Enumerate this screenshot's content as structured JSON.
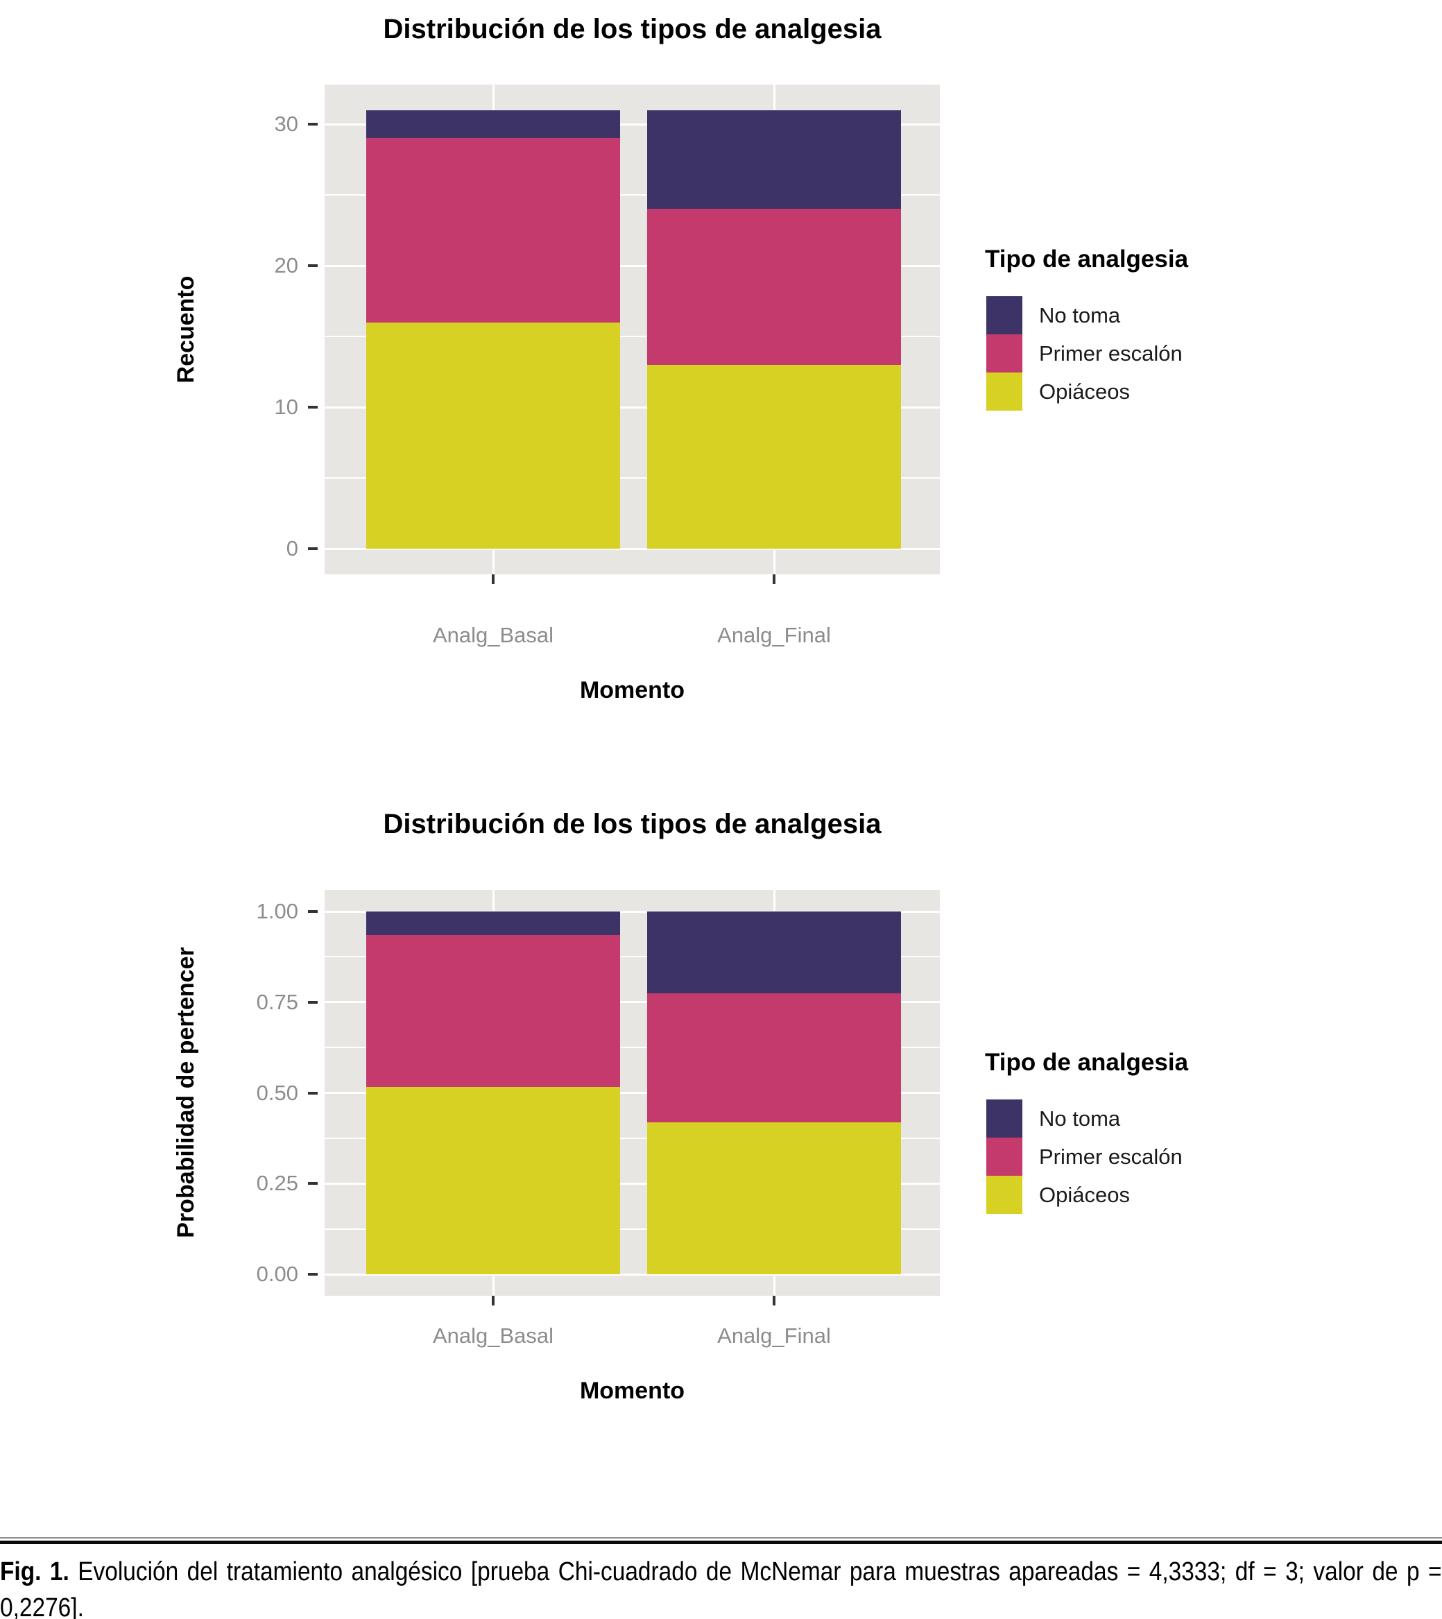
{
  "page": {
    "background": "#FFFFFF"
  },
  "figure": {
    "caption_label": "Fig. 1.",
    "caption_text": " Evolución del tratamiento analgésico [prueba Chi-cuadrado de McNemar para muestras apareadas = 4,3333; df = 3; valor de p = 0,2276]."
  },
  "legend": {
    "title": "Tipo de analgesia",
    "items": [
      {
        "label": "No toma",
        "color": "#3E3367"
      },
      {
        "label": "Primer escalón",
        "color": "#C43A6C"
      },
      {
        "label": "Opiáceos",
        "color": "#D7D124"
      }
    ]
  },
  "style": {
    "panel_bg": "#E8E6E3",
    "grid_color": "#FFFFFF",
    "axis_text_color": "#8C8C8C",
    "tick_color": "#333333",
    "no_toma_color": "#3E3367",
    "primer_escalon_color": "#C43A6C",
    "opiaceos_color": "#D7D124"
  },
  "chart_data": [
    {
      "type": "bar",
      "stacked": true,
      "title": "Distribución de los tipos de analgesia",
      "xlabel": "Momento",
      "ylabel": "Recuento",
      "categories": [
        "Analg_Basal",
        "Analg_Final"
      ],
      "series": [
        {
          "name": "Opiáceos",
          "values": [
            16,
            13
          ],
          "color": "#D7D124"
        },
        {
          "name": "Primer escalón",
          "values": [
            13,
            11
          ],
          "color": "#C43A6C"
        },
        {
          "name": "No toma",
          "values": [
            2,
            7
          ],
          "color": "#3E3367"
        }
      ],
      "totals": [
        31,
        31
      ],
      "ylim": [
        0,
        31
      ],
      "y_ticks": [
        {
          "label": "0",
          "value": 0
        },
        {
          "label": "10",
          "value": 10
        },
        {
          "label": "20",
          "value": 20
        },
        {
          "label": "30",
          "value": 30
        }
      ],
      "y_minor_ticks": [
        5,
        15,
        25
      ],
      "legend_title": "Tipo de analgesia",
      "legend_position": "right",
      "grid": true
    },
    {
      "type": "bar",
      "stacked": true,
      "normalized": true,
      "title": "Distribución de los tipos de analgesia",
      "xlabel": "Momento",
      "ylabel": "Probabilidad de pertencer",
      "categories": [
        "Analg_Basal",
        "Analg_Final"
      ],
      "series": [
        {
          "name": "Opiáceos",
          "values": [
            0.516,
            0.419
          ],
          "color": "#D7D124"
        },
        {
          "name": "Primer escalón",
          "values": [
            0.419,
            0.355
          ],
          "color": "#C43A6C"
        },
        {
          "name": "No toma",
          "values": [
            0.065,
            0.226
          ],
          "color": "#3E3367"
        }
      ],
      "ylim": [
        0,
        1
      ],
      "y_ticks": [
        {
          "label": "0.00",
          "value": 0
        },
        {
          "label": "0.25",
          "value": 0.25
        },
        {
          "label": "0.50",
          "value": 0.5
        },
        {
          "label": "0.75",
          "value": 0.75
        },
        {
          "label": "1.00",
          "value": 1
        }
      ],
      "y_minor_ticks": [
        0.125,
        0.375,
        0.625,
        0.875
      ],
      "legend_title": "Tipo de analgesia",
      "legend_position": "right",
      "grid": true
    }
  ]
}
